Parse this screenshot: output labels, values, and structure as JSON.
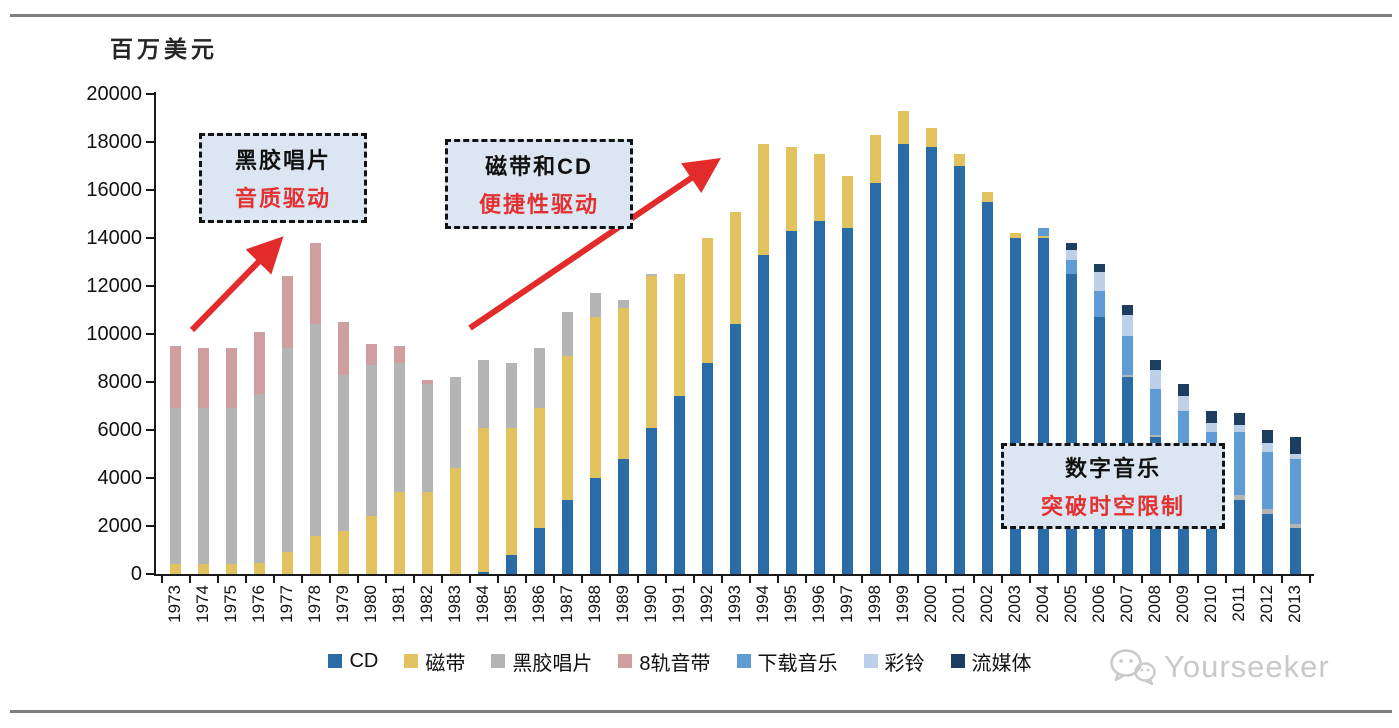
{
  "chart_data": {
    "type": "bar",
    "stacked": true,
    "unit_label": "百万美元",
    "ylim": [
      0,
      20000
    ],
    "ytick_step": 2000,
    "grid": false,
    "legend_position": "bottom",
    "categories": [
      "1973",
      "1974",
      "1975",
      "1976",
      "1977",
      "1978",
      "1979",
      "1980",
      "1981",
      "1982",
      "1983",
      "1984",
      "1985",
      "1986",
      "1987",
      "1988",
      "1989",
      "1990",
      "1991",
      "1992",
      "1993",
      "1994",
      "1995",
      "1996",
      "1997",
      "1998",
      "1999",
      "2000",
      "2001",
      "2002",
      "2003",
      "2004",
      "2005",
      "2006",
      "2007",
      "2008",
      "2009",
      "2010",
      "2011",
      "2012",
      "2013"
    ],
    "series": [
      {
        "name": "CD",
        "color": "#2a6ca8",
        "values": [
          0,
          0,
          0,
          0,
          0,
          0,
          0,
          0,
          0,
          0,
          0,
          100,
          800,
          1900,
          3100,
          4000,
          4800,
          6100,
          7400,
          8800,
          10400,
          13300,
          14300,
          14700,
          14400,
          16300,
          17900,
          17800,
          17000,
          15500,
          14000,
          14000,
          12500,
          10700,
          8200,
          5700,
          4400,
          3400,
          3100,
          2500,
          1900
        ]
      },
      {
        "name": "磁带",
        "color": "#e2c25f",
        "values": [
          400,
          400,
          400,
          450,
          900,
          1600,
          1800,
          2400,
          3400,
          3400,
          4400,
          6000,
          5300,
          5000,
          6000,
          6700,
          6300,
          6300,
          5100,
          5200,
          4700,
          4600,
          3500,
          2800,
          2200,
          2000,
          1400,
          800,
          500,
          400,
          200,
          100,
          0,
          0,
          0,
          0,
          0,
          0,
          0,
          0,
          0
        ]
      },
      {
        "name": "黑胶唱片",
        "color": "#b4b4b4",
        "values": [
          6500,
          6500,
          6500,
          7050,
          8500,
          8800,
          6500,
          6300,
          5400,
          4500,
          3800,
          2800,
          2700,
          2500,
          1800,
          1000,
          300,
          100,
          0,
          0,
          0,
          0,
          0,
          0,
          0,
          0,
          0,
          0,
          0,
          0,
          0,
          0,
          0,
          0,
          100,
          100,
          100,
          100,
          200,
          200,
          200
        ]
      },
      {
        "name": "8轨音带",
        "color": "#cf9e9e",
        "values": [
          2600,
          2500,
          2500,
          2600,
          3000,
          3400,
          2200,
          900,
          700,
          200,
          0,
          0,
          0,
          0,
          0,
          0,
          0,
          0,
          0,
          0,
          0,
          0,
          0,
          0,
          0,
          0,
          0,
          0,
          0,
          0,
          0,
          0,
          0,
          0,
          0,
          0,
          0,
          0,
          0,
          0,
          0
        ]
      },
      {
        "name": "下载音乐",
        "color": "#5f9bd5",
        "values": [
          0,
          0,
          0,
          0,
          0,
          0,
          0,
          0,
          0,
          0,
          0,
          0,
          0,
          0,
          0,
          0,
          0,
          0,
          0,
          0,
          0,
          0,
          0,
          0,
          0,
          0,
          0,
          0,
          0,
          0,
          0,
          300,
          600,
          1100,
          1600,
          1900,
          2300,
          2400,
          2600,
          2400,
          2700
        ]
      },
      {
        "name": "彩铃",
        "color": "#bdd0e9",
        "values": [
          0,
          0,
          0,
          0,
          0,
          0,
          0,
          0,
          0,
          0,
          0,
          0,
          0,
          0,
          0,
          0,
          0,
          0,
          0,
          0,
          0,
          0,
          0,
          0,
          0,
          0,
          0,
          0,
          0,
          0,
          0,
          0,
          400,
          800,
          900,
          800,
          600,
          400,
          300,
          350,
          200
        ]
      },
      {
        "name": "流媒体",
        "color": "#1e3e61",
        "values": [
          0,
          0,
          0,
          0,
          0,
          0,
          0,
          0,
          0,
          0,
          0,
          0,
          0,
          0,
          0,
          0,
          0,
          0,
          0,
          0,
          0,
          0,
          0,
          0,
          0,
          0,
          0,
          0,
          0,
          0,
          0,
          0,
          300,
          300,
          400,
          400,
          500,
          500,
          500,
          550,
          700
        ]
      }
    ],
    "totals_note": "峰值1999年约19300，2013年约5700"
  },
  "annotations": [
    {
      "line1": "黑胶唱片",
      "line2": "音质驱动"
    },
    {
      "line1": "磁带和CD",
      "line2": "便捷性驱动"
    },
    {
      "line1": "数字音乐",
      "line2": "突破时空限制"
    }
  ],
  "arrow_color": "#e32b2b",
  "watermark": {
    "brand": "Yourseeker",
    "icon": "wechat-icon"
  }
}
